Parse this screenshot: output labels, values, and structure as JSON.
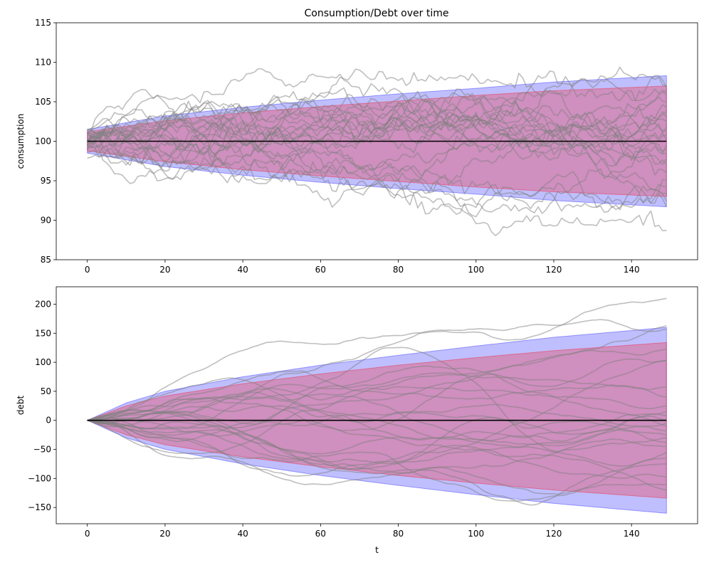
{
  "figure": {
    "title": "Consumption/Debt over time"
  },
  "chart_data": [
    {
      "type": "line",
      "title": "Consumption/Debt over time",
      "xlabel": "",
      "ylabel": "consumption",
      "xlim": [
        -8,
        157
      ],
      "ylim": [
        85,
        115
      ],
      "xticks": [
        0,
        20,
        40,
        60,
        80,
        100,
        120,
        140
      ],
      "yticks": [
        85,
        90,
        95,
        100,
        105,
        110,
        115
      ],
      "grid": false,
      "legend": "none",
      "x_range": [
        0,
        149
      ],
      "mean_line": {
        "value": 100,
        "color": "#000000"
      },
      "bands": [
        {
          "color": "#0000ff",
          "opacity": 0.25,
          "points": [
            [
              0,
              101.5,
              98.5
            ],
            [
              20,
              103.2,
              96.8
            ],
            [
              40,
              104.3,
              95.7
            ],
            [
              60,
              105.2,
              94.8
            ],
            [
              80,
              106.0,
              94.0
            ],
            [
              100,
              106.7,
              93.3
            ],
            [
              120,
              107.5,
              92.5
            ],
            [
              149,
              108.3,
              91.7
            ]
          ]
        },
        {
          "color": "#ff0000",
          "opacity": 0.25,
          "points": [
            [
              0,
              101.2,
              98.8
            ],
            [
              20,
              102.6,
              97.4
            ],
            [
              40,
              103.6,
              96.4
            ],
            [
              60,
              104.4,
              95.6
            ],
            [
              80,
              105.1,
              94.9
            ],
            [
              100,
              105.8,
              94.2
            ],
            [
              120,
              106.4,
              93.6
            ],
            [
              149,
              107.0,
              93.0
            ]
          ]
        }
      ],
      "paths": {
        "count": 25,
        "color": "#808080",
        "opacity": 0.5,
        "endpoints": [
          88.7,
          91.7,
          92.4,
          93.4,
          94.2,
          95.0,
          96.0,
          97.0,
          97.8,
          98.5,
          99.0,
          99.5,
          100.2,
          100.8,
          101.3,
          101.8,
          102.5,
          103.0,
          103.8,
          104.3,
          105.0,
          105.8,
          106.4,
          106.9,
          107.0
        ]
      }
    },
    {
      "type": "line",
      "title": "",
      "xlabel": "t",
      "ylabel": "debt",
      "xlim": [
        -8,
        157
      ],
      "ylim": [
        -178,
        230
      ],
      "xticks": [
        0,
        20,
        40,
        60,
        80,
        100,
        120,
        140
      ],
      "yticks": [
        -150,
        -100,
        -50,
        0,
        50,
        100,
        150,
        200
      ],
      "ytick_labels": [
        "−150",
        "−100",
        "−50",
        "0",
        "50",
        "100",
        "150",
        "200"
      ],
      "grid": false,
      "legend": "none",
      "x_range": [
        0,
        149
      ],
      "mean_line": {
        "value": 0,
        "color": "#000000"
      },
      "bands": [
        {
          "color": "#0000ff",
          "opacity": 0.25,
          "points": [
            [
              0,
              0,
              0
            ],
            [
              10,
              30,
              -30
            ],
            [
              20,
              50,
              -50
            ],
            [
              40,
              75,
              -75
            ],
            [
              60,
              95,
              -95
            ],
            [
              80,
              112,
              -112
            ],
            [
              100,
              128,
              -128
            ],
            [
              120,
              143,
              -143
            ],
            [
              149,
              160,
              -160
            ]
          ]
        },
        {
          "color": "#ff0000",
          "opacity": 0.25,
          "points": [
            [
              0,
              0,
              0
            ],
            [
              10,
              25,
              -25
            ],
            [
              20,
              42,
              -42
            ],
            [
              40,
              63,
              -63
            ],
            [
              60,
              80,
              -80
            ],
            [
              80,
              95,
              -95
            ],
            [
              100,
              108,
              -108
            ],
            [
              120,
              120,
              -120
            ],
            [
              149,
              134,
              -134
            ]
          ]
        }
      ],
      "paths": {
        "count": 25,
        "color": "#808080",
        "opacity": 0.5,
        "endpoints": [
          210,
          163,
          157,
          123,
          103,
          57,
          40,
          25,
          15,
          8,
          0,
          -5,
          -10,
          -18,
          -25,
          -30,
          -38,
          -45,
          -55,
          -65,
          -75,
          -98,
          -110,
          -120,
          103
        ]
      }
    }
  ]
}
